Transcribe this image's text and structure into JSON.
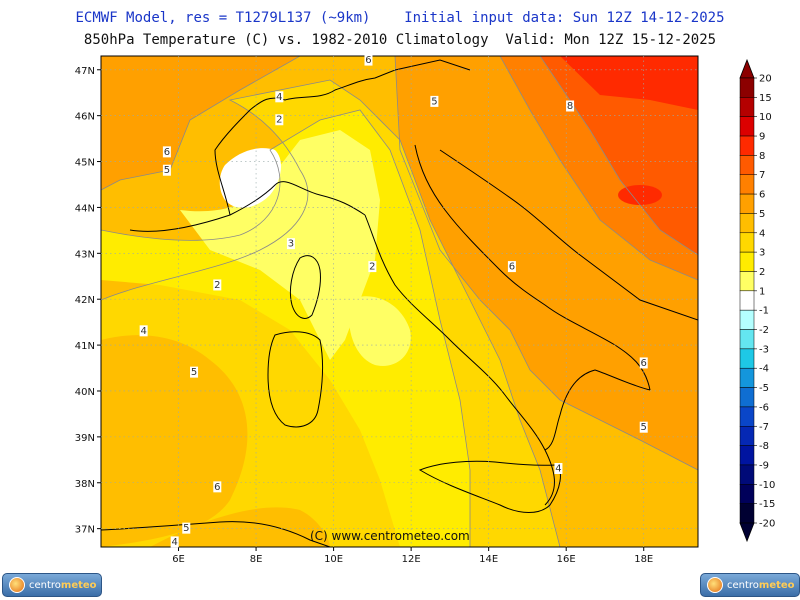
{
  "header": {
    "line1": "ECMWF Model, res = T1279L137 (~9km)    Initial input data: Sun 12Z 14-12-2025",
    "line2": "850hPa Temperature (C) vs. 1982-2010 Climatology  Valid: Mon 12Z 15-12-2025"
  },
  "map": {
    "lon_range": [
      4.0,
      19.4
    ],
    "lat_range": [
      36.6,
      47.3
    ],
    "lon_ticks": [
      "6E",
      "8E",
      "10E",
      "12E",
      "14E",
      "16E",
      "18E"
    ],
    "lat_ticks": [
      "47N",
      "46N",
      "45N",
      "44N",
      "43N",
      "42N",
      "41N",
      "40N",
      "39N",
      "38N",
      "37N"
    ],
    "contour_labels": [
      {
        "text": "6",
        "lon": 5.7,
        "lat": 45.2
      },
      {
        "text": "5",
        "lon": 5.7,
        "lat": 44.8
      },
      {
        "text": "4",
        "lon": 8.6,
        "lat": 46.4
      },
      {
        "text": "2",
        "lon": 8.6,
        "lat": 45.9
      },
      {
        "text": "6",
        "lon": 10.9,
        "lat": 47.2
      },
      {
        "text": "5",
        "lon": 12.6,
        "lat": 46.3
      },
      {
        "text": "8",
        "lon": 16.1,
        "lat": 46.2
      },
      {
        "text": "3",
        "lon": 8.9,
        "lat": 43.2
      },
      {
        "text": "2",
        "lon": 7.0,
        "lat": 42.3
      },
      {
        "text": "2",
        "lon": 11.0,
        "lat": 42.7
      },
      {
        "text": "6",
        "lon": 14.6,
        "lat": 42.7
      },
      {
        "text": "4",
        "lon": 5.1,
        "lat": 41.3
      },
      {
        "text": "5",
        "lon": 6.4,
        "lat": 40.4
      },
      {
        "text": "6",
        "lon": 18.0,
        "lat": 40.6
      },
      {
        "text": "5",
        "lon": 18.0,
        "lat": 39.2
      },
      {
        "text": "4",
        "lon": 15.8,
        "lat": 38.3
      },
      {
        "text": "6",
        "lon": 7.0,
        "lat": 37.9
      },
      {
        "text": "5",
        "lon": 6.2,
        "lat": 37.0
      },
      {
        "text": "4",
        "lon": 5.9,
        "lat": 36.7
      }
    ]
  },
  "colorbar": {
    "levels": [
      "20",
      "15",
      "10",
      "9",
      "8",
      "7",
      "6",
      "5",
      "4",
      "3",
      "2",
      "1",
      "-1",
      "-2",
      "-3",
      "-4",
      "-5",
      "-6",
      "-7",
      "-8",
      "-9",
      "-10",
      "-15",
      "-20"
    ],
    "colors": [
      "#8c0000",
      "#b40000",
      "#dc0000",
      "#ff2a00",
      "#ff5a00",
      "#ff8000",
      "#ffa000",
      "#ffbe00",
      "#ffd800",
      "#ffec00",
      "#ffff64",
      "#ffffff",
      "#b4ffff",
      "#64e6f0",
      "#1ec8e6",
      "#1496dc",
      "#0f6ed2",
      "#0a46c8",
      "#0528b4",
      "#0014a0",
      "#000a78",
      "#00005a",
      "#000032"
    ]
  },
  "copyright": "(C) www.centrometeo.com",
  "logos": {
    "left": "centro",
    "left_b": "meteo",
    "right": "centro",
    "right_b": "meteo"
  }
}
